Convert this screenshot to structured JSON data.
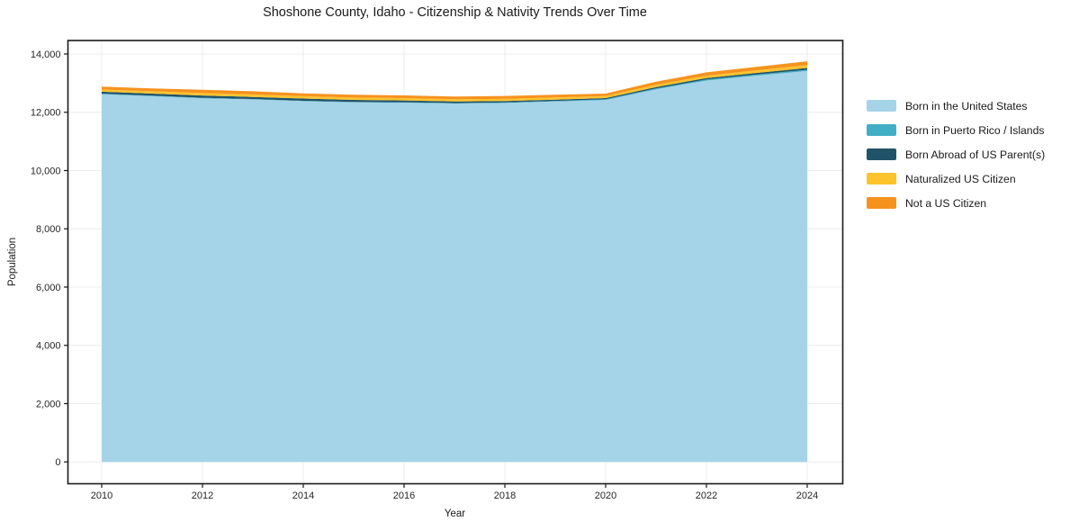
{
  "chart_data": {
    "type": "area",
    "stacked": true,
    "title": "Shoshone County, Idaho - Citizenship & Nativity Trends Over Time",
    "xlabel": "Year",
    "ylabel": "Population",
    "x": [
      2010,
      2011,
      2012,
      2013,
      2014,
      2015,
      2016,
      2017,
      2018,
      2019,
      2020,
      2021,
      2022,
      2023,
      2024
    ],
    "series": [
      {
        "name": "Born in the United States",
        "color": "#a5d3e7",
        "values": [
          12620,
          12550,
          12480,
          12440,
          12380,
          12340,
          12330,
          12300,
          12320,
          12370,
          12420,
          12790,
          13090,
          13260,
          13420
        ]
      },
      {
        "name": "Born in Puerto Rico / Islands",
        "color": "#41aec5",
        "values": [
          20,
          20,
          20,
          15,
          15,
          15,
          15,
          15,
          15,
          20,
          25,
          30,
          35,
          35,
          40
        ]
      },
      {
        "name": "Born Abroad of US Parent(s)",
        "color": "#215368",
        "values": [
          65,
          70,
          75,
          70,
          75,
          70,
          60,
          55,
          50,
          45,
          40,
          45,
          50,
          55,
          60
        ]
      },
      {
        "name": "Naturalized US Citizen",
        "color": "#fcc32d",
        "values": [
          75,
          80,
          85,
          85,
          80,
          80,
          80,
          75,
          75,
          75,
          70,
          75,
          80,
          90,
          100
        ]
      },
      {
        "name": "Not a US Citizen",
        "color": "#f6921e",
        "values": [
          100,
          100,
          110,
          110,
          100,
          95,
          95,
          95,
          100,
          90,
          85,
          110,
          115,
          120,
          130
        ]
      }
    ],
    "totals": [
      12880,
      12820,
      12770,
      12720,
      12650,
      12600,
      12580,
      12540,
      12560,
      12600,
      12640,
      13050,
      13370,
      13560,
      13750
    ],
    "x_tick_values": [
      2010,
      2012,
      2014,
      2016,
      2018,
      2020,
      2022,
      2024
    ],
    "x_tick_labels": [
      "2010",
      "2012",
      "2014",
      "2016",
      "2018",
      "2020",
      "2022",
      "2024"
    ],
    "y_tick_values": [
      0,
      2000,
      4000,
      6000,
      8000,
      10000,
      12000,
      14000
    ],
    "y_tick_labels": [
      "0",
      "2,000",
      "4,000",
      "6,000",
      "8,000",
      "10,000",
      "12,000",
      "14,000"
    ],
    "ylim": [
      0,
      14460
    ],
    "xlim": [
      2009.3,
      2024.7
    ],
    "grid": true,
    "grid_color": "#ececec",
    "spine_color": "#1a1a1a",
    "legend_position": "right"
  }
}
